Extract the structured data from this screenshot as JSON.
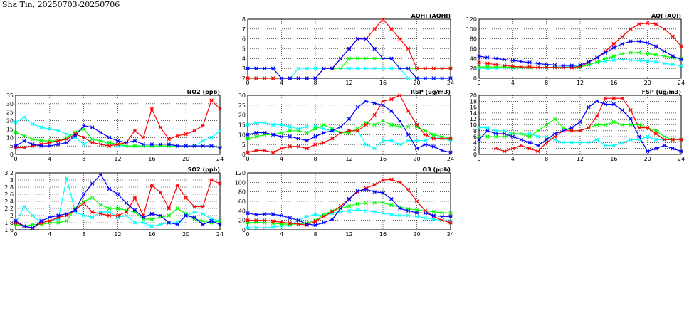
{
  "page": {
    "title": "Sha Tin, 20250703-20250706"
  },
  "colors": {
    "blue": "#0000ff",
    "red": "#ff0000",
    "green": "#00ff00",
    "cyan": "#00ffff"
  },
  "chart_data": [
    {
      "id": "aqhi",
      "type": "line",
      "title": "AQHI (AQHI)",
      "xlim": [
        0,
        24
      ],
      "ylim": [
        2,
        8
      ],
      "xticks": [
        0,
        4,
        8,
        12,
        16,
        20,
        24
      ],
      "yticks": [
        2,
        3,
        4,
        5,
        6,
        7,
        8
      ],
      "grid": true,
      "series": [
        {
          "color": "cyan",
          "values": [
            3,
            3,
            3,
            3,
            2,
            2,
            3,
            3,
            3,
            3,
            3,
            3,
            3,
            3,
            3,
            3,
            3,
            3,
            3,
            2,
            2,
            2,
            2,
            2,
            2
          ]
        },
        {
          "color": "green",
          "values": [
            2,
            2,
            2,
            2,
            2,
            2,
            2,
            2,
            2,
            3,
            3,
            3,
            4,
            4,
            4,
            4,
            4,
            4,
            3,
            3,
            3,
            3,
            3,
            3,
            3
          ]
        },
        {
          "color": "red",
          "values": [
            2,
            2,
            2,
            2,
            2,
            2,
            2,
            2,
            2,
            3,
            3,
            4,
            5,
            6,
            6,
            7,
            8,
            7,
            6,
            5,
            3,
            3,
            3,
            3,
            3
          ]
        },
        {
          "color": "blue",
          "values": [
            3,
            3,
            3,
            3,
            2,
            2,
            2,
            2,
            2,
            3,
            3,
            4,
            5,
            6,
            6,
            5,
            4,
            4,
            3,
            3,
            2,
            2,
            2,
            2,
            2
          ]
        }
      ]
    },
    {
      "id": "aqi",
      "type": "line",
      "title": "AQI (AQI)",
      "xlim": [
        0,
        24
      ],
      "ylim": [
        0,
        120
      ],
      "xticks": [
        0,
        4,
        8,
        12,
        16,
        20,
        24
      ],
      "yticks": [
        0,
        20,
        40,
        60,
        80,
        100,
        120
      ],
      "grid": true,
      "series": [
        {
          "color": "cyan",
          "values": [
            20,
            20,
            20,
            21,
            21,
            21,
            22,
            22,
            22,
            23,
            23,
            24,
            25,
            28,
            32,
            35,
            37,
            38,
            37,
            36,
            35,
            33,
            30,
            28,
            25
          ]
        },
        {
          "color": "green",
          "values": [
            23,
            23,
            23,
            23,
            22,
            22,
            22,
            22,
            22,
            22,
            22,
            22,
            23,
            27,
            33,
            40,
            45,
            50,
            52,
            52,
            50,
            48,
            45,
            42,
            40
          ]
        },
        {
          "color": "red",
          "values": [
            32,
            30,
            28,
            26,
            24,
            23,
            23,
            22,
            22,
            22,
            22,
            22,
            24,
            32,
            42,
            55,
            70,
            85,
            100,
            110,
            112,
            110,
            100,
            85,
            65
          ]
        },
        {
          "color": "blue",
          "values": [
            45,
            42,
            40,
            38,
            36,
            34,
            32,
            30,
            28,
            27,
            26,
            26,
            27,
            33,
            42,
            52,
            62,
            70,
            75,
            75,
            72,
            65,
            55,
            45,
            38
          ]
        }
      ]
    },
    {
      "id": "no2",
      "type": "line",
      "title": "NO2 (ppb)",
      "xlim": [
        0,
        24
      ],
      "ylim": [
        0,
        35
      ],
      "xticks": [
        0,
        4,
        8,
        12,
        16,
        20,
        24
      ],
      "yticks": [
        0,
        5,
        10,
        15,
        20,
        25,
        30,
        35
      ],
      "grid": true,
      "series": [
        {
          "color": "cyan",
          "values": [
            19,
            22,
            18,
            16,
            15,
            14,
            12,
            10,
            6,
            9,
            8,
            6,
            5,
            5,
            5,
            5,
            5,
            5,
            5,
            5,
            5,
            5,
            8,
            10,
            14
          ]
        },
        {
          "color": "green",
          "values": [
            13,
            11,
            9,
            8,
            8,
            8,
            10,
            13,
            15,
            9,
            8,
            7,
            6,
            5,
            5,
            5,
            5,
            5,
            5,
            5,
            5,
            5,
            5,
            5,
            4
          ]
        },
        {
          "color": "red",
          "values": [
            4,
            4,
            5,
            6,
            7,
            8,
            9,
            12,
            10,
            7,
            6,
            5,
            6,
            7,
            14,
            10,
            27,
            16,
            9,
            11,
            12,
            14,
            17,
            32,
            27
          ]
        },
        {
          "color": "blue",
          "values": [
            5,
            8,
            6,
            5,
            5,
            6,
            7,
            11,
            17,
            16,
            13,
            10,
            8,
            7,
            8,
            6,
            6,
            6,
            6,
            5,
            5,
            5,
            5,
            5,
            4
          ]
        }
      ]
    },
    {
      "id": "rsp",
      "type": "line",
      "title": "RSP (ug/m3)",
      "xlim": [
        0,
        24
      ],
      "ylim": [
        0,
        30
      ],
      "xticks": [
        0,
        4,
        8,
        12,
        16,
        20,
        24
      ],
      "yticks": [
        0,
        5,
        10,
        15,
        20,
        25,
        30
      ],
      "grid": true,
      "series": [
        {
          "color": "cyan",
          "values": [
            15,
            16,
            16,
            15,
            15,
            14,
            13,
            14,
            14,
            13,
            12,
            11,
            12,
            12,
            5,
            3,
            7,
            7,
            5,
            7,
            7,
            7,
            9,
            8,
            7
          ]
        },
        {
          "color": "green",
          "values": [
            8,
            9,
            10,
            10,
            11,
            12,
            12,
            11,
            13,
            15,
            13,
            11,
            11,
            13,
            16,
            15,
            17,
            15,
            14,
            14,
            14,
            12,
            10,
            9,
            8
          ]
        },
        {
          "color": "red",
          "values": [
            1,
            2,
            2,
            1,
            3,
            4,
            4,
            3,
            5,
            6,
            8,
            11,
            12,
            12,
            15,
            20,
            27,
            28,
            30,
            22,
            15,
            10,
            8,
            8,
            8
          ]
        },
        {
          "color": "blue",
          "values": [
            10,
            11,
            11,
            10,
            9,
            9,
            8,
            7,
            9,
            11,
            12,
            14,
            18,
            24,
            27,
            26,
            25,
            22,
            17,
            10,
            3,
            5,
            4,
            2,
            1
          ]
        }
      ]
    },
    {
      "id": "fsp",
      "type": "line",
      "title": "FSP (ug/m3)",
      "xlim": [
        0,
        24
      ],
      "ylim": [
        0,
        20
      ],
      "xticks": [
        0,
        4,
        8,
        12,
        16,
        20,
        24
      ],
      "yticks": [
        0,
        2,
        4,
        6,
        8,
        10,
        12,
        14,
        16,
        18,
        20
      ],
      "grid": true,
      "series": [
        {
          "color": "cyan",
          "values": [
            9,
            9,
            8,
            8,
            7,
            7,
            7,
            6,
            6,
            5,
            4,
            4,
            4,
            4,
            5,
            3,
            3,
            4,
            5,
            5,
            6,
            5,
            5,
            5,
            5
          ]
        },
        {
          "color": "green",
          "values": [
            6,
            6,
            6,
            6,
            7,
            7,
            6,
            8,
            10,
            12,
            9,
            8,
            8,
            9,
            10,
            10,
            11,
            10,
            10,
            10,
            9,
            8,
            6,
            5,
            5
          ]
        },
        {
          "color": "red",
          "values": [
            null,
            null,
            2,
            1,
            2,
            3,
            2,
            1,
            4,
            6,
            8,
            8,
            8,
            9,
            13,
            19,
            19,
            19,
            15,
            9,
            9,
            7,
            5,
            5,
            5
          ]
        },
        {
          "color": "blue",
          "values": [
            5,
            8,
            7,
            7,
            6,
            5,
            4,
            3,
            5,
            7,
            8,
            9,
            11,
            16,
            18,
            17,
            17,
            15,
            12,
            6,
            1,
            2,
            3,
            2,
            1
          ]
        }
      ]
    },
    {
      "id": "so2",
      "type": "line",
      "title": "SO2 (ppb)",
      "xlim": [
        0,
        24
      ],
      "ylim": [
        1.6,
        3.2
      ],
      "xticks": [
        0,
        4,
        8,
        12,
        16,
        20,
        24
      ],
      "yticks": [
        1.6,
        1.8,
        2.0,
        2.2,
        2.4,
        2.6,
        2.8,
        3.0,
        3.2
      ],
      "grid": true,
      "series": [
        {
          "color": "cyan",
          "values": [
            1.8,
            2.25,
            2.0,
            1.8,
            1.85,
            1.9,
            3.05,
            2.1,
            2.0,
            1.95,
            2.1,
            2.1,
            1.95,
            2.0,
            1.8,
            1.8,
            1.7,
            1.75,
            1.8,
            1.8,
            2.0,
            2.1,
            2.05,
            1.9,
            1.85
          ]
        },
        {
          "color": "green",
          "values": [
            1.75,
            1.7,
            1.75,
            1.75,
            1.8,
            1.8,
            1.85,
            2.2,
            2.4,
            2.5,
            2.3,
            2.2,
            2.2,
            2.15,
            2.1,
            1.9,
            1.9,
            1.95,
            2.0,
            2.2,
            2.05,
            1.9,
            1.85,
            1.8,
            1.85
          ]
        },
        {
          "color": "red",
          "values": [
            1.8,
            1.7,
            1.65,
            1.8,
            1.85,
            1.95,
            2.0,
            2.15,
            2.35,
            2.1,
            2.05,
            2.0,
            2.0,
            2.1,
            2.5,
            2.0,
            2.85,
            2.65,
            2.2,
            2.85,
            2.5,
            2.25,
            2.25,
            3.0,
            2.9
          ]
        },
        {
          "color": "blue",
          "values": [
            1.85,
            1.7,
            1.65,
            1.85,
            1.95,
            2.0,
            2.05,
            2.15,
            2.6,
            2.9,
            3.15,
            2.75,
            2.6,
            2.35,
            2.15,
            1.95,
            2.05,
            2.0,
            1.8,
            1.75,
            2.0,
            1.95,
            1.75,
            1.85,
            1.75
          ]
        }
      ]
    },
    {
      "id": "o3",
      "type": "line",
      "title": "O3 (ppb)",
      "xlim": [
        0,
        24
      ],
      "ylim": [
        0,
        120
      ],
      "xticks": [
        0,
        4,
        8,
        12,
        16,
        20,
        24
      ],
      "yticks": [
        0,
        20,
        40,
        60,
        80,
        100,
        120
      ],
      "grid": true,
      "series": [
        {
          "color": "cyan",
          "values": [
            5,
            4,
            4,
            6,
            8,
            10,
            20,
            28,
            32,
            30,
            35,
            38,
            40,
            42,
            40,
            38,
            35,
            32,
            30,
            30,
            28,
            25,
            22,
            20,
            18
          ]
        },
        {
          "color": "green",
          "values": [
            15,
            16,
            15,
            14,
            12,
            12,
            12,
            14,
            20,
            32,
            40,
            45,
            50,
            55,
            56,
            57,
            57,
            52,
            48,
            44,
            42,
            40,
            38,
            36,
            35
          ]
        },
        {
          "color": "red",
          "values": [
            20,
            20,
            20,
            18,
            16,
            14,
            12,
            10,
            18,
            28,
            38,
            50,
            65,
            80,
            88,
            95,
            105,
            106,
            100,
            85,
            60,
            40,
            28,
            20,
            15
          ]
        },
        {
          "color": "blue",
          "values": [
            35,
            32,
            33,
            33,
            30,
            25,
            20,
            12,
            10,
            15,
            22,
            45,
            65,
            82,
            85,
            80,
            78,
            65,
            45,
            40,
            36,
            35,
            30,
            28,
            28
          ]
        }
      ]
    }
  ]
}
